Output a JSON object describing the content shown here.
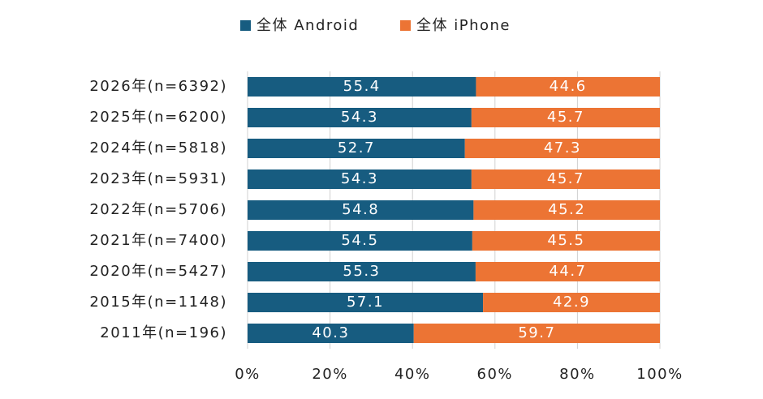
{
  "chart_data": {
    "type": "bar",
    "orientation": "horizontal",
    "stacked": true,
    "categories": [
      "2026年(n=6392)",
      "2025年(n=6200)",
      "2024年(n=5818)",
      "2023年(n=5931)",
      "2022年(n=5706)",
      "2021年(n=7400)",
      "2020年(n=5427)",
      "2015年(n=1148)",
      "2011年(n=196)"
    ],
    "series": [
      {
        "name": "全体 Android",
        "color": "#175c80",
        "values": [
          55.4,
          54.3,
          52.7,
          54.3,
          54.8,
          54.5,
          55.3,
          57.1,
          40.3
        ]
      },
      {
        "name": "全体 iPhone",
        "color": "#ec7434",
        "values": [
          44.6,
          45.7,
          47.3,
          45.7,
          45.2,
          45.5,
          44.7,
          42.9,
          59.7
        ]
      }
    ],
    "xlim": [
      0,
      100
    ],
    "xticks": [
      {
        "value": 0,
        "label": "0%"
      },
      {
        "value": 20,
        "label": "20%"
      },
      {
        "value": 40,
        "label": "40%"
      },
      {
        "value": 60,
        "label": "60%"
      },
      {
        "value": 80,
        "label": "80%"
      },
      {
        "value": 100,
        "label": "100%"
      }
    ],
    "grid": true,
    "legend": "top"
  }
}
